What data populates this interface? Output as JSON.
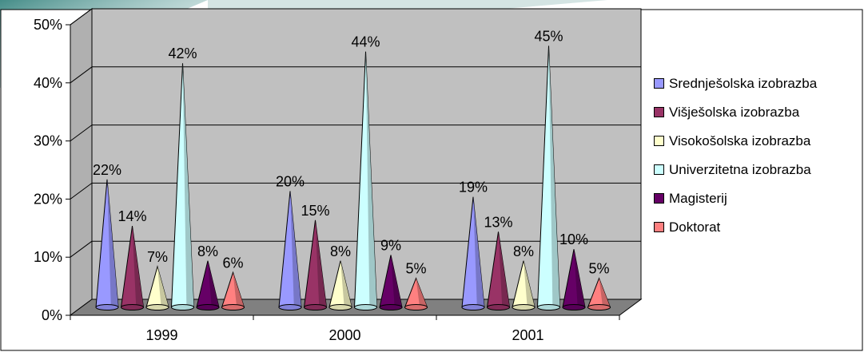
{
  "chart_data": {
    "type": "bar",
    "title": "",
    "xlabel": "",
    "ylabel": "",
    "ylim": [
      0,
      50
    ],
    "y_ticks": [
      "0%",
      "10%",
      "20%",
      "30%",
      "40%",
      "50%"
    ],
    "grid": true,
    "legend_position": "right",
    "categories": [
      "1999",
      "2000",
      "2001"
    ],
    "series": [
      {
        "name": "Srednješolska izobrazba",
        "values": [
          22,
          20,
          19
        ],
        "labels": [
          "22%",
          "20%",
          "19%"
        ],
        "color": "#9999ff"
      },
      {
        "name": "Višješolska izobrazba",
        "values": [
          14,
          15,
          13
        ],
        "labels": [
          "14%",
          "15%",
          "13%"
        ],
        "color": "#993366"
      },
      {
        "name": "Visokošolska izobrazba",
        "values": [
          7,
          8,
          8
        ],
        "labels": [
          "7%",
          "8%",
          "8%"
        ],
        "color": "#ffffcc"
      },
      {
        "name": "Univerzitetna izobrazba",
        "values": [
          42,
          44,
          45
        ],
        "labels": [
          "42%",
          "44%",
          "45%"
        ],
        "color": "#ccffff"
      },
      {
        "name": "Magisterij",
        "values": [
          8,
          9,
          10
        ],
        "labels": [
          "8%",
          "9%",
          "10%"
        ],
        "color": "#660066"
      },
      {
        "name": "Doktorat",
        "values": [
          6,
          5,
          5
        ],
        "labels": [
          "6%",
          "5%",
          "5%"
        ],
        "color": "#ff8080"
      }
    ]
  },
  "colors": {
    "plot_wall": "#c0c0c0",
    "floor": "#808080",
    "gridline": "#000000"
  }
}
